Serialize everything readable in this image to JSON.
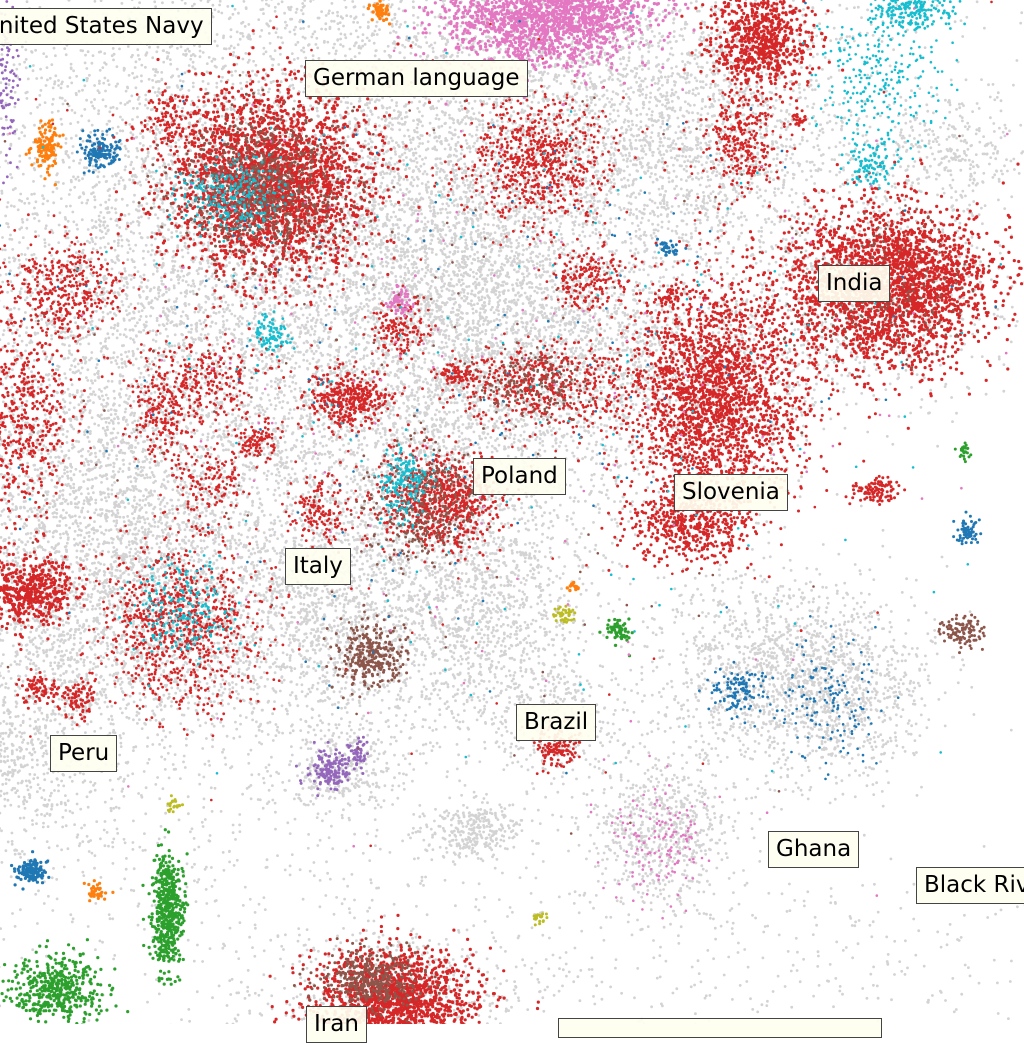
{
  "labels": {
    "us_navy": "United States Navy",
    "german_language": "German language",
    "india": "India",
    "poland": "Poland",
    "slovenia": "Slovenia",
    "italy": "Italy",
    "brazil": "Brazil",
    "peru": "Peru",
    "ghana": "Ghana",
    "black_river": "Black River",
    "iran": "Iran"
  },
  "colors": {
    "background_points": "#d3d3d3",
    "red": "#d62728",
    "brown": "#8c564b",
    "cyan": "#17becf",
    "pink": "#e377c2",
    "blue": "#1f77b4",
    "green": "#2ca02c",
    "orange": "#ff7f0e",
    "purple": "#9467bd",
    "olive": "#bcbd22",
    "label_background": "#fffff0",
    "label_border": "#444444"
  }
}
